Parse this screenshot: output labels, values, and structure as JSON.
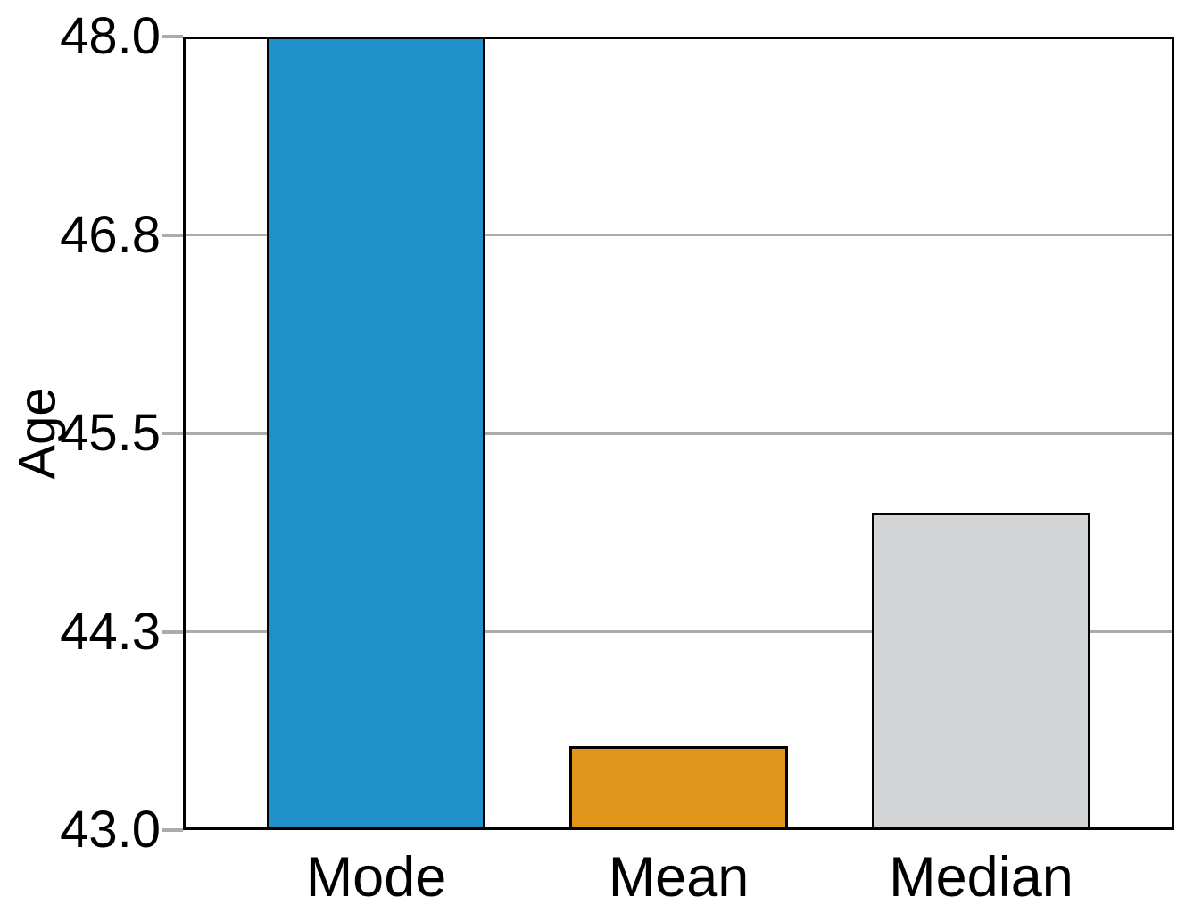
{
  "figure": {
    "background": "#ffffff"
  },
  "chart_data": {
    "type": "bar",
    "title": "",
    "categories": [
      "Mode",
      "Mean",
      "Median"
    ],
    "values": [
      48.0,
      43.53,
      45.0
    ],
    "bar_colors": [
      "#2090c8",
      "#e0961a",
      "#d3d4d6"
    ],
    "bar_edge_color": "#000000",
    "xlabel": "",
    "ylabel": "Age",
    "ylim": [
      43.0,
      48.0
    ],
    "yticks": [
      {
        "value": 48.0,
        "label": "48.0"
      },
      {
        "value": 46.75,
        "label": "46.8"
      },
      {
        "value": 45.5,
        "label": "45.5"
      },
      {
        "value": 44.25,
        "label": "44.3"
      },
      {
        "value": 43.0,
        "label": "43.0"
      }
    ],
    "grid": "horizontal",
    "grid_color": "#ababab",
    "tick_color": "#ababab",
    "axis_color": "#000000",
    "legend": "none"
  }
}
